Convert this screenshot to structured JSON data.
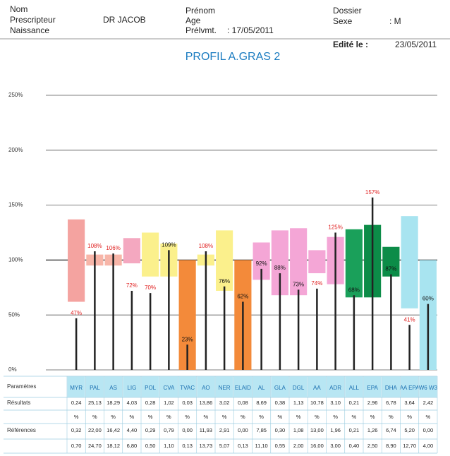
{
  "header": {
    "nom": "Nom",
    "prescripteur": "Prescripteur",
    "naissance": "Naissance",
    "doctor": "DR JACOB",
    "prenom": "Prénom",
    "age": "Age",
    "prelvmt": "Prélvmt.",
    "prelvmt_value": ": 17/05/2011",
    "dossier": "Dossier",
    "sexe": "Sexe",
    "sexe_value": ": M",
    "edite": "Edité le :",
    "edite_value": "23/05/2011"
  },
  "chart_data": {
    "type": "range-bar",
    "title": "PROFIL A.GRAS 2",
    "categories": [
      "MYR",
      "PAL",
      "AS",
      "LIG",
      "POL",
      "CVA",
      "TVAC",
      "AO",
      "NER",
      "ELAID",
      "AL",
      "GLA",
      "DGL",
      "AA",
      "ADR",
      "ALL",
      "EPA",
      "DHA",
      "AA EPA",
      "W6 W3"
    ],
    "values": [
      47,
      108,
      106,
      72,
      70,
      109,
      23,
      108,
      76,
      62,
      92,
      88,
      73,
      74,
      125,
      68,
      157,
      87,
      41,
      60
    ],
    "value_labels": [
      "47%",
      "108%",
      "106%",
      "72%",
      "70%",
      "109%",
      "23%",
      "108%",
      "76%",
      "62%",
      "92%",
      "88%",
      "73%",
      "74%",
      "125%",
      "68%",
      "157%",
      "87%",
      "41%",
      "60%"
    ],
    "ranges": [
      [
        62,
        137
      ],
      [
        95,
        105
      ],
      [
        95,
        105
      ],
      [
        97,
        120
      ],
      [
        85,
        125
      ],
      [
        85,
        115
      ],
      [
        0,
        100
      ],
      [
        95,
        105
      ],
      [
        72,
        127
      ],
      [
        0,
        100
      ],
      [
        82,
        116
      ],
      [
        68,
        127
      ],
      [
        68,
        129
      ],
      [
        88,
        109
      ],
      [
        78,
        121
      ],
      [
        66,
        128
      ],
      [
        66,
        132
      ],
      [
        85,
        112
      ],
      [
        56,
        140
      ],
      [
        0,
        100
      ]
    ],
    "colors": [
      "#f4a3a0",
      "#f7b5a8",
      "#f7b5a8",
      "#f4a8c0",
      "#fbf08c",
      "#fbf08c",
      "#f38a3a",
      "#fbf08c",
      "#fbf08c",
      "#f38a3a",
      "#f4a6d6",
      "#f4a6d6",
      "#f4a6d6",
      "#f4a6d6",
      "#f4a6d6",
      "#1aa05a",
      "#0c8c48",
      "#0c8c48",
      "#a8e4f0",
      "#a8e4f0"
    ],
    "ylim": [
      0,
      250
    ],
    "yticks": [
      {
        "value": 0,
        "label": "0%"
      },
      {
        "value": 50,
        "label": "50%"
      },
      {
        "value": 100,
        "label": "100%"
      },
      {
        "value": 150,
        "label": "150%"
      },
      {
        "value": 200,
        "label": "200%"
      },
      {
        "value": 250,
        "label": "250%"
      }
    ],
    "grid": true
  },
  "table": {
    "row_labels": [
      "Paramètres",
      "Résultats",
      "Références"
    ],
    "results": [
      "0,24",
      "25,13",
      "18,29",
      "4,03",
      "0,28",
      "1,02",
      "0,03",
      "13,86",
      "3,02",
      "0,08",
      "8,69",
      "0,38",
      "1,13",
      "10,78",
      "3,10",
      "0,21",
      "2,96",
      "6,78",
      "3,64",
      "2,42"
    ],
    "units": [
      "%",
      "%",
      "%",
      "%",
      "%",
      "%",
      "%",
      "%",
      "%",
      "%",
      "%",
      "%",
      "%",
      "%",
      "%",
      "%",
      "%",
      "%",
      "%",
      "%"
    ],
    "ref_low": [
      "0,32",
      "22,00",
      "16,42",
      "4,40",
      "0,29",
      "0,79",
      "0,00",
      "11,93",
      "2,91",
      "0,00",
      "7,85",
      "0,30",
      "1,08",
      "13,00",
      "1,96",
      "0,21",
      "1,26",
      "6,74",
      "5,20",
      "0,00"
    ],
    "ref_high": [
      "0,70",
      "24,70",
      "18,12",
      "6,80",
      "0,50",
      "1,10",
      "0,13",
      "13,73",
      "5,07",
      "0,13",
      "11,10",
      "0,55",
      "2,00",
      "16,00",
      "3,00",
      "0,40",
      "2,50",
      "8,90",
      "12,70",
      "4,00"
    ]
  }
}
